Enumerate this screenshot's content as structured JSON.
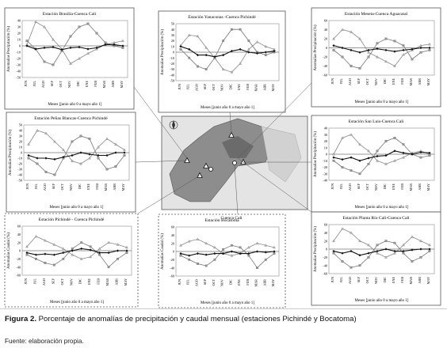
{
  "figure": {
    "panels": [
      {
        "id": "p1",
        "title": "Estación  Brasilia-Cuenca  Cali",
        "ylabel": "Anomalías  Precipitación (%)",
        "xlabel": "Meses [junio año 0 a mayo año 1]",
        "yticks": [
          "40",
          "30",
          "20",
          "10",
          "0",
          "-10",
          "-20",
          "-30",
          "-40",
          "-50"
        ]
      },
      {
        "id": "p2",
        "title": "Estación  Yanaconas  -Cuenca  Pichindé",
        "ylabel": "Anomalías  Precipitación (%)",
        "xlabel": "Meses [junio año 0 a mayo año 1]",
        "yticks": [
          "50",
          "40",
          "30",
          "20",
          "10",
          "0",
          "-10",
          "-20",
          "-30",
          "-40",
          "-50"
        ]
      },
      {
        "id": "p3",
        "title": "Estación  Meseta-Cuenca  Aguacatal",
        "ylabel": "Anomalías  Precipitación (%)",
        "xlabel": "Meses [junio año 0 a mayo año 1]",
        "yticks": [
          "60",
          "40",
          "20",
          "0",
          "-20",
          "-40",
          "-60"
        ]
      },
      {
        "id": "p4",
        "title": "Estación  Peñas  Blancas-Cuenca  Pichindé",
        "ylabel": "Anomalías  Precipitación (%)",
        "xlabel": "Meses [junio año 0 a mayo año 1]",
        "yticks": [
          "50",
          "40",
          "30",
          "20",
          "10",
          "0",
          "-10",
          "-20",
          "-30",
          "-40",
          "-50"
        ]
      },
      {
        "id": "p5",
        "title": "Estación  San  Luis-Cuenca  Cali",
        "ylabel": "Anomalías  Precipitación (%)",
        "xlabel": "Meses [junio año 0 a mayo año 1]",
        "yticks": [
          "40",
          "30",
          "20",
          "10",
          "0",
          "-10",
          "-20",
          "-30",
          "-40"
        ]
      },
      {
        "id": "p6",
        "title": "Estación  Pichindé  - Cuenca  Pichindé",
        "ylabel": "Anomalías  Caudal (%)",
        "xlabel": "Meses [junio año 0 a mayo año 1]",
        "yticks": [
          "60",
          "40",
          "20",
          "0",
          "-20",
          "-40",
          "-60"
        ]
      },
      {
        "id": "p7",
        "title": "Estación  Bocatoma",
        "ylabel": "Anomalías  Caudal (%)",
        "xlabel": "Meses [junio año 0 a mayo año 1]",
        "yticks": [
          "60",
          "40",
          "20",
          "0",
          "-20",
          "-40",
          "-60"
        ]
      },
      {
        "id": "p8",
        "title": "Estación  Planta  Río  Cali-Cuenca  Cali",
        "ylabel": "Anomalías  Precipitación (%)",
        "xlabel": "Meses [junio año 0 a mayo año 1]",
        "yticks": [
          "60",
          "40",
          "20",
          "0",
          "-20",
          "-40",
          "-60"
        ]
      }
    ],
    "months": [
      "JUN",
      "JUL",
      "AGO",
      "SEP",
      "OCT",
      "NOV",
      "DIC",
      "ENE",
      "FEB",
      "MAR",
      "ABR",
      "MAY"
    ],
    "map_label": "Cuenca  Cali"
  },
  "chart_data": [
    {
      "type": "line",
      "panel": "p1",
      "categories": [
        "JUN",
        "JUL",
        "AGO",
        "SEP",
        "OCT",
        "NOV",
        "DIC",
        "ENE",
        "FEB",
        "MAR",
        "ABR",
        "MAY"
      ],
      "series": [
        {
          "values": [
            2,
            38,
            30,
            10,
            -5,
            -28,
            -20,
            -12,
            -5,
            2,
            5,
            8
          ]
        },
        {
          "values": [
            8,
            -5,
            -25,
            -30,
            -8,
            15,
            30,
            35,
            20,
            5,
            0,
            -3
          ]
        },
        {
          "values": [
            0,
            -5,
            -3,
            -2,
            -6,
            -3,
            -2,
            -5,
            -3,
            2,
            2,
            0
          ]
        }
      ],
      "ylim": [
        -50,
        40
      ]
    },
    {
      "type": "line",
      "panel": "p2",
      "categories": [
        "JUN",
        "JUL",
        "AGO",
        "SEP",
        "OCT",
        "NOV",
        "DIC",
        "ENE",
        "FEB",
        "MAR",
        "ABR",
        "MAY"
      ],
      "series": [
        {
          "values": [
            12,
            30,
            28,
            8,
            -10,
            -30,
            -35,
            -20,
            5,
            18,
            10,
            5
          ]
        },
        {
          "values": [
            5,
            -10,
            -25,
            -30,
            -10,
            20,
            40,
            40,
            20,
            0,
            -5,
            0
          ]
        },
        {
          "values": [
            10,
            5,
            -5,
            -5,
            -8,
            -5,
            2,
            5,
            0,
            -2,
            0,
            2
          ]
        }
      ],
      "ylim": [
        -50,
        50
      ]
    },
    {
      "type": "line",
      "panel": "p3",
      "categories": [
        "JUN",
        "JUL",
        "AGO",
        "SEP",
        "OCT",
        "NOV",
        "DIC",
        "ENE",
        "FEB",
        "MAR",
        "ABR",
        "MAY"
      ],
      "series": [
        {
          "values": [
            20,
            40,
            35,
            20,
            -10,
            -20,
            -30,
            -40,
            -15,
            -5,
            5,
            8
          ]
        },
        {
          "values": [
            -5,
            -20,
            -40,
            -45,
            -20,
            10,
            20,
            15,
            5,
            -25,
            -10,
            -5
          ]
        },
        {
          "values": [
            5,
            0,
            -5,
            -10,
            -5,
            -2,
            -5,
            -8,
            -5,
            -3,
            0,
            0
          ]
        }
      ],
      "ylim": [
        -60,
        60
      ]
    },
    {
      "type": "line",
      "panel": "p4",
      "categories": [
        "JUN",
        "JUL",
        "AGO",
        "SEP",
        "OCT",
        "NOV",
        "DIC",
        "ENE",
        "FEB",
        "MAR",
        "ABR",
        "MAY"
      ],
      "series": [
        {
          "values": [
            15,
            40,
            35,
            20,
            5,
            -15,
            -20,
            -10,
            10,
            25,
            15,
            5
          ]
        },
        {
          "values": [
            -10,
            -20,
            -35,
            -40,
            -10,
            20,
            30,
            25,
            -10,
            -30,
            -25,
            -5
          ]
        },
        {
          "values": [
            -5,
            -10,
            -10,
            -12,
            -8,
            -5,
            0,
            -3,
            -5,
            -5,
            0,
            0
          ]
        }
      ],
      "ylim": [
        -50,
        50
      ]
    },
    {
      "type": "line",
      "panel": "p5",
      "categories": [
        "JUN",
        "JUL",
        "AGO",
        "SEP",
        "OCT",
        "NOV",
        "DIC",
        "ENE",
        "FEB",
        "MAR",
        "ABR",
        "MAY"
      ],
      "series": [
        {
          "values": [
            0,
            25,
            30,
            15,
            5,
            -10,
            -15,
            -10,
            -5,
            2,
            5,
            0
          ]
        },
        {
          "values": [
            -10,
            -20,
            -25,
            -30,
            -15,
            5,
            20,
            25,
            15,
            0,
            -5,
            -2
          ]
        },
        {
          "values": [
            -5,
            -8,
            -5,
            -10,
            -6,
            -3,
            -2,
            5,
            2,
            0,
            3,
            2
          ]
        }
      ],
      "ylim": [
        -40,
        40
      ]
    },
    {
      "type": "line",
      "panel": "p6",
      "categories": [
        "JUN",
        "JUL",
        "AGO",
        "SEP",
        "OCT",
        "NOV",
        "DIC",
        "ENE",
        "FEB",
        "MAR",
        "ABR",
        "MAY"
      ],
      "series": [
        {
          "values": [
            10,
            35,
            25,
            15,
            5,
            -10,
            -20,
            -15,
            5,
            20,
            15,
            8
          ]
        },
        {
          "values": [
            -10,
            -20,
            -30,
            -35,
            -20,
            5,
            20,
            10,
            -10,
            -40,
            -20,
            -5
          ]
        },
        {
          "values": [
            -5,
            -10,
            -8,
            -10,
            -5,
            0,
            5,
            2,
            -5,
            -5,
            0,
            0
          ]
        }
      ],
      "ylim": [
        -60,
        60
      ]
    },
    {
      "type": "line",
      "panel": "p7",
      "categories": [
        "JUN",
        "JUL",
        "AGO",
        "SEP",
        "OCT",
        "NOV",
        "DIC",
        "ENE",
        "FEB",
        "MAR",
        "ABR",
        "MAY"
      ],
      "series": [
        {
          "values": [
            15,
            25,
            30,
            20,
            10,
            -5,
            -10,
            -5,
            10,
            20,
            15,
            10
          ]
        },
        {
          "values": [
            -10,
            -20,
            -30,
            -35,
            -20,
            5,
            15,
            10,
            -10,
            -40,
            -20,
            -5
          ]
        },
        {
          "values": [
            -5,
            -10,
            -5,
            -8,
            -5,
            -5,
            0,
            -5,
            -5,
            0,
            -2,
            0
          ]
        }
      ],
      "ylim": [
        -60,
        60
      ]
    },
    {
      "type": "line",
      "panel": "p8",
      "categories": [
        "JUN",
        "JUL",
        "AGO",
        "SEP",
        "OCT",
        "NOV",
        "DIC",
        "ENE",
        "FEB",
        "MAR",
        "ABR",
        "MAY"
      ],
      "series": [
        {
          "values": [
            20,
            50,
            40,
            20,
            10,
            -10,
            -20,
            -10,
            10,
            30,
            20,
            10
          ]
        },
        {
          "values": [
            -10,
            -30,
            -45,
            -40,
            -20,
            10,
            20,
            15,
            -10,
            -30,
            -20,
            -5
          ]
        },
        {
          "values": [
            -5,
            -10,
            -5,
            -15,
            -10,
            -5,
            0,
            -5,
            -5,
            -2,
            0,
            0
          ]
        }
      ],
      "ylim": [
        -60,
        60
      ]
    }
  ],
  "caption": {
    "label": "Figura 2.",
    "text": " Porcentaje de anomalías de precipitación y caudal mensual (estaciones Pichindé y Bocatoma)"
  },
  "source": "Fuente: elaboración propia."
}
